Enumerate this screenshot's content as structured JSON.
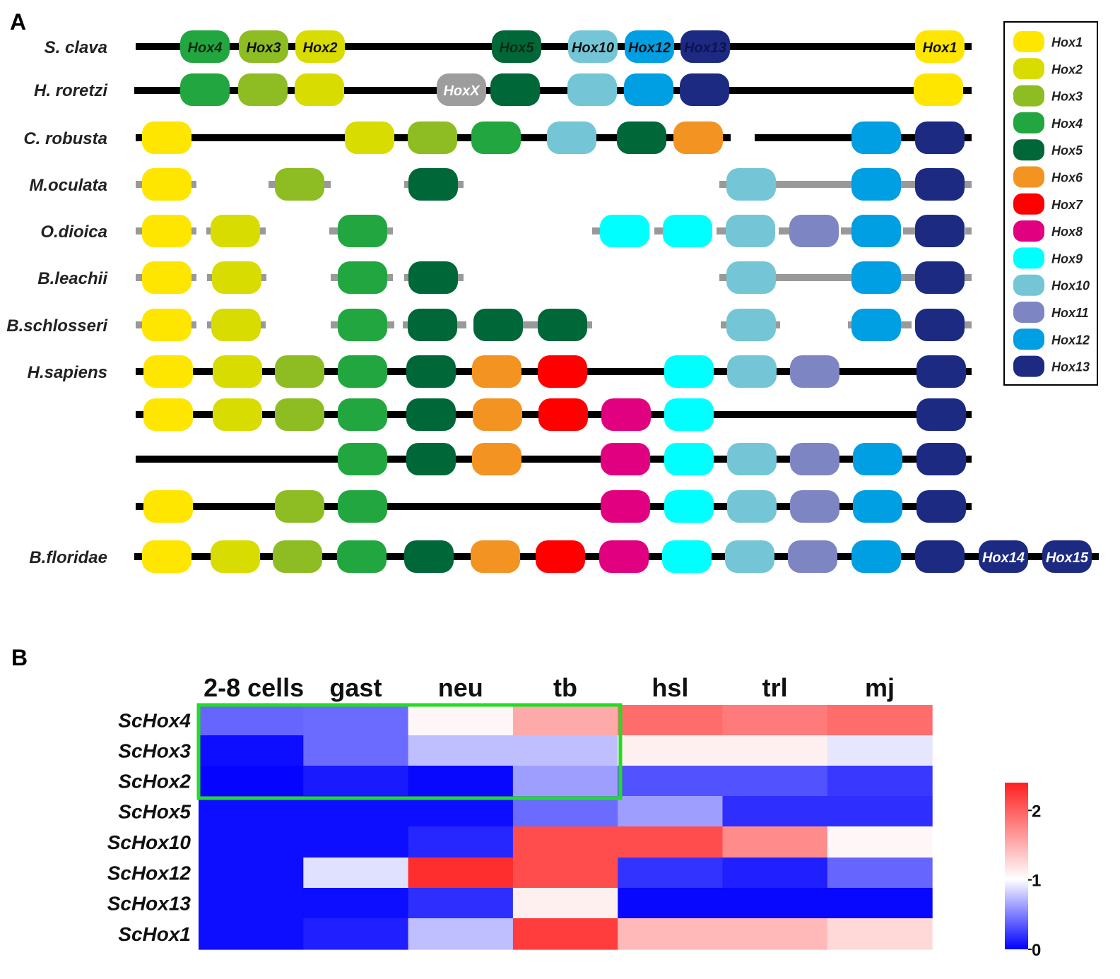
{
  "panels": {
    "a": "A",
    "b": "B"
  },
  "colors": {
    "Hox1": "#ffe600",
    "Hox2": "#d9dc00",
    "Hox3": "#8dbd22",
    "Hox4": "#22a640",
    "Hox5": "#006738",
    "Hox6": "#f39322",
    "Hox7": "#ff0000",
    "Hox8": "#e1007f",
    "Hox9": "#00ffff",
    "Hox10": "#74c6d6",
    "Hox11": "#7d86c2",
    "Hox12": "#009fe3",
    "Hox13": "#1d2a82",
    "HoxX": "#9d9d9d"
  },
  "legend": [
    "Hox1",
    "Hox2",
    "Hox3",
    "Hox4",
    "Hox5",
    "Hox6",
    "Hox7",
    "Hox8",
    "Hox9",
    "Hox10",
    "Hox11",
    "Hox12",
    "Hox13"
  ],
  "cluster_rows": [
    {
      "species": "S. clava",
      "genes": [
        [
          "Hox4",
          290
        ],
        [
          "Hox3",
          373
        ],
        [
          "Hox2",
          453
        ],
        [
          "Hox5",
          731
        ],
        [
          "Hox10",
          839
        ],
        [
          "Hox12",
          919
        ],
        [
          "Hox13",
          998
        ],
        [
          "Hox1",
          1330
        ]
      ],
      "labels": [
        "Hox4",
        "Hox3",
        "Hox2",
        "Hox5",
        "Hox10",
        "Hox12",
        "Hox13",
        "Hox1"
      ]
    },
    {
      "species": "H. roretzi",
      "genes": [
        [
          "Hox4",
          290
        ],
        [
          "Hox3",
          372
        ],
        [
          "Hox2",
          452
        ],
        [
          "HoxX",
          653
        ],
        [
          "Hox5",
          729
        ],
        [
          "Hox10",
          838
        ],
        [
          "Hox12",
          918
        ],
        [
          "Hox13",
          997
        ],
        [
          "Hox1",
          1328
        ]
      ],
      "labels": [
        "HoxX"
      ]
    },
    {
      "species": "C. robusta",
      "genes": [
        [
          "Hox1",
          236
        ],
        [
          "Hox2",
          523
        ],
        [
          "Hox3",
          612
        ],
        [
          "Hox4",
          702
        ],
        [
          "Hox10",
          809
        ],
        [
          "Hox5",
          908
        ],
        [
          "Hox6",
          988
        ],
        [
          "Hox12",
          1240
        ],
        [
          "Hox13",
          1330
        ]
      ],
      "labels": []
    },
    {
      "species": "M.oculata",
      "genes": [
        [
          "Hox1",
          236
        ],
        [
          "Hox3",
          424
        ],
        [
          "Hox5",
          613
        ],
        [
          "Hox10",
          1063
        ],
        [
          "Hox12",
          1240
        ],
        [
          "Hox13",
          1330
        ]
      ],
      "labels": []
    },
    {
      "species": "O.dioica",
      "genes": [
        [
          "Hox1",
          236
        ],
        [
          "Hox2",
          333
        ],
        [
          "Hox4",
          513
        ],
        [
          "Hox9",
          884
        ],
        [
          "Hox9",
          973
        ],
        [
          "Hox10",
          1062
        ],
        [
          "Hox11",
          1152
        ],
        [
          "Hox12",
          1240
        ],
        [
          "Hox13",
          1330
        ]
      ],
      "labels": []
    },
    {
      "species": "B.leachii",
      "genes": [
        [
          "Hox1",
          236
        ],
        [
          "Hox2",
          335
        ],
        [
          "Hox4",
          513
        ],
        [
          "Hox5",
          613
        ],
        [
          "Hox10",
          1063
        ],
        [
          "Hox12",
          1240
        ],
        [
          "Hox13",
          1330
        ]
      ],
      "labels": []
    },
    {
      "species": "B.schlosseri",
      "genes": [
        [
          "Hox1",
          236
        ],
        [
          "Hox2",
          334
        ],
        [
          "Hox4",
          513
        ],
        [
          "Hox5",
          612
        ],
        [
          "Hox5",
          705
        ],
        [
          "Hox5",
          796
        ],
        [
          "Hox10",
          1063
        ],
        [
          "Hox12",
          1240
        ],
        [
          "Hox13",
          1330
        ]
      ],
      "labels": []
    },
    {
      "species": "H.sapiens",
      "genes": [
        [
          "Hox1",
          238
        ],
        [
          "Hox2",
          336
        ],
        [
          "Hox3",
          424
        ],
        [
          "Hox4",
          513
        ],
        [
          "Hox5",
          610
        ],
        [
          "Hox6",
          703
        ],
        [
          "Hox7",
          796
        ],
        [
          "Hox9",
          975
        ],
        [
          "Hox10",
          1064
        ],
        [
          "Hox11",
          1153
        ],
        [
          "Hox13",
          1332
        ]
      ],
      "labels": []
    },
    {
      "species": "",
      "genes": [
        [
          "Hox1",
          238
        ],
        [
          "Hox2",
          336
        ],
        [
          "Hox3",
          424
        ],
        [
          "Hox4",
          513
        ],
        [
          "Hox5",
          610
        ],
        [
          "Hox6",
          704
        ],
        [
          "Hox7",
          797
        ],
        [
          "Hox8",
          886
        ],
        [
          "Hox9",
          975
        ],
        [
          "Hox13",
          1332
        ]
      ],
      "labels": []
    },
    {
      "species": "",
      "genes": [
        [
          "Hox4",
          513
        ],
        [
          "Hox5",
          610
        ],
        [
          "Hox6",
          703
        ],
        [
          "Hox8",
          885
        ],
        [
          "Hox9",
          975
        ],
        [
          "Hox10",
          1064
        ],
        [
          "Hox11",
          1153
        ],
        [
          "Hox12",
          1242
        ],
        [
          "Hox13",
          1332
        ]
      ],
      "labels": []
    },
    {
      "species": "",
      "genes": [
        [
          "Hox1",
          238
        ],
        [
          "Hox3",
          424
        ],
        [
          "Hox4",
          513
        ],
        [
          "Hox8",
          885
        ],
        [
          "Hox9",
          975
        ],
        [
          "Hox10",
          1064
        ],
        [
          "Hox11",
          1153
        ],
        [
          "Hox12",
          1242
        ],
        [
          "Hox13",
          1332
        ]
      ],
      "labels": []
    },
    {
      "species": "B.floridae",
      "genes": [
        [
          "Hox1",
          236
        ],
        [
          "Hox2",
          333
        ],
        [
          "Hox3",
          421
        ],
        [
          "Hox4",
          512
        ],
        [
          "Hox5",
          607
        ],
        [
          "Hox6",
          701
        ],
        [
          "Hox7",
          793
        ],
        [
          "Hox8",
          883
        ],
        [
          "Hox9",
          972
        ],
        [
          "Hox10",
          1061
        ],
        [
          "Hox11",
          1150
        ],
        [
          "Hox12",
          1240
        ],
        [
          "Hox13",
          1330
        ],
        [
          "Hox13",
          1420
        ],
        [
          "Hox13",
          1510
        ]
      ],
      "labels": [
        "Hox14",
        "Hox15"
      ]
    }
  ],
  "heatmap": {
    "columns": [
      "2-8 cells",
      "gast",
      "neu",
      "tb",
      "hsl",
      "trl",
      "mj"
    ],
    "rows": [
      "ScHox4",
      "ScHox3",
      "ScHox2",
      "ScHox5",
      "ScHox10",
      "ScHox12",
      "ScHox13",
      "ScHox1"
    ],
    "values": [
      [
        0.4,
        0.42,
        1.05,
        1.55,
        1.95,
        1.85,
        1.95
      ],
      [
        0.05,
        0.42,
        0.75,
        0.75,
        1.1,
        1.1,
        0.9
      ],
      [
        0.02,
        0.1,
        0.03,
        0.62,
        0.32,
        0.32,
        0.22
      ],
      [
        0.05,
        0.05,
        0.05,
        0.42,
        0.62,
        0.18,
        0.18
      ],
      [
        0.05,
        0.05,
        0.15,
        2.15,
        2.15,
        1.75,
        1.05
      ],
      [
        0.05,
        0.88,
        2.35,
        2.15,
        0.2,
        0.12,
        0.4
      ],
      [
        0.05,
        0.05,
        0.18,
        1.1,
        0.03,
        0.03,
        0.03
      ],
      [
        0.05,
        0.12,
        0.75,
        2.25,
        1.45,
        1.45,
        1.25
      ]
    ],
    "colorbar": {
      "min": 0,
      "mid": 1,
      "max": 2.4,
      "ticks": [
        "2",
        "1",
        "0"
      ]
    }
  }
}
